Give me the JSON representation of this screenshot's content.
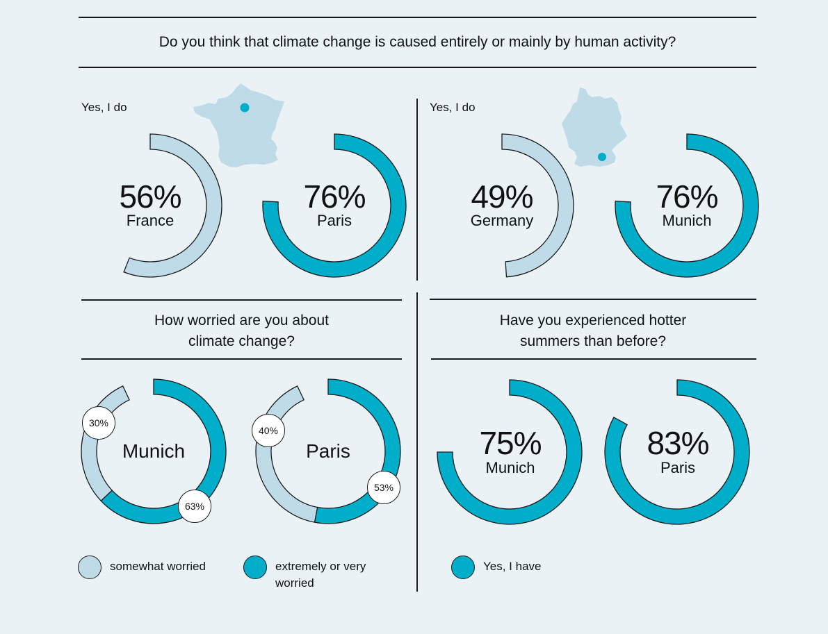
{
  "colors": {
    "background": "#ebf2f6",
    "light_blue": "#bfdbe7",
    "teal": "#00aec9",
    "text": "#111111"
  },
  "q1": {
    "title": "Do you think that climate change is caused entirely or mainly by human activity?",
    "left": {
      "answer_label": "Yes, I do",
      "map": "france-map-icon",
      "charts": [
        {
          "value": "56%",
          "label": "France"
        },
        {
          "value": "76%",
          "label": "Paris"
        }
      ]
    },
    "right": {
      "answer_label": "Yes, I do",
      "map": "germany-map-icon",
      "charts": [
        {
          "value": "49%",
          "label": "Germany"
        },
        {
          "value": "76%",
          "label": "Munich"
        }
      ]
    }
  },
  "q2": {
    "title_line1": "How worried are you about",
    "title_line2": "climate change?",
    "charts": [
      {
        "name": "Munich",
        "somewhat": "30%",
        "extremely": "63%"
      },
      {
        "name": "Paris",
        "somewhat": "40%",
        "extremely": "53%"
      }
    ],
    "legend": [
      {
        "label": "somewhat worried"
      },
      {
        "label_line1": "extremely or very",
        "label_line2": "worried"
      }
    ]
  },
  "q3": {
    "title_line1": "Have you experienced hotter",
    "title_line2": "summers than before?",
    "charts": [
      {
        "value": "75%",
        "label": "Munich"
      },
      {
        "value": "83%",
        "label": "Paris"
      }
    ],
    "legend": [
      {
        "label": "Yes, I have"
      }
    ]
  },
  "chart_data": [
    {
      "type": "pie",
      "title": "Do you think that climate change is caused entirely or mainly by human activity? (Yes, I do)",
      "categories": [
        "France",
        "Paris",
        "Germany",
        "Munich"
      ],
      "values": [
        56,
        76,
        49,
        76
      ],
      "unit": "%"
    },
    {
      "type": "pie",
      "title": "How worried are you about climate change?",
      "categories": [
        "Munich",
        "Paris"
      ],
      "series": [
        {
          "name": "somewhat worried",
          "values": [
            30,
            40
          ]
        },
        {
          "name": "extremely or very worried",
          "values": [
            63,
            53
          ]
        }
      ],
      "unit": "%"
    },
    {
      "type": "pie",
      "title": "Have you experienced hotter summers than before? (Yes, I have)",
      "categories": [
        "Munich",
        "Paris"
      ],
      "values": [
        75,
        83
      ],
      "unit": "%"
    }
  ]
}
